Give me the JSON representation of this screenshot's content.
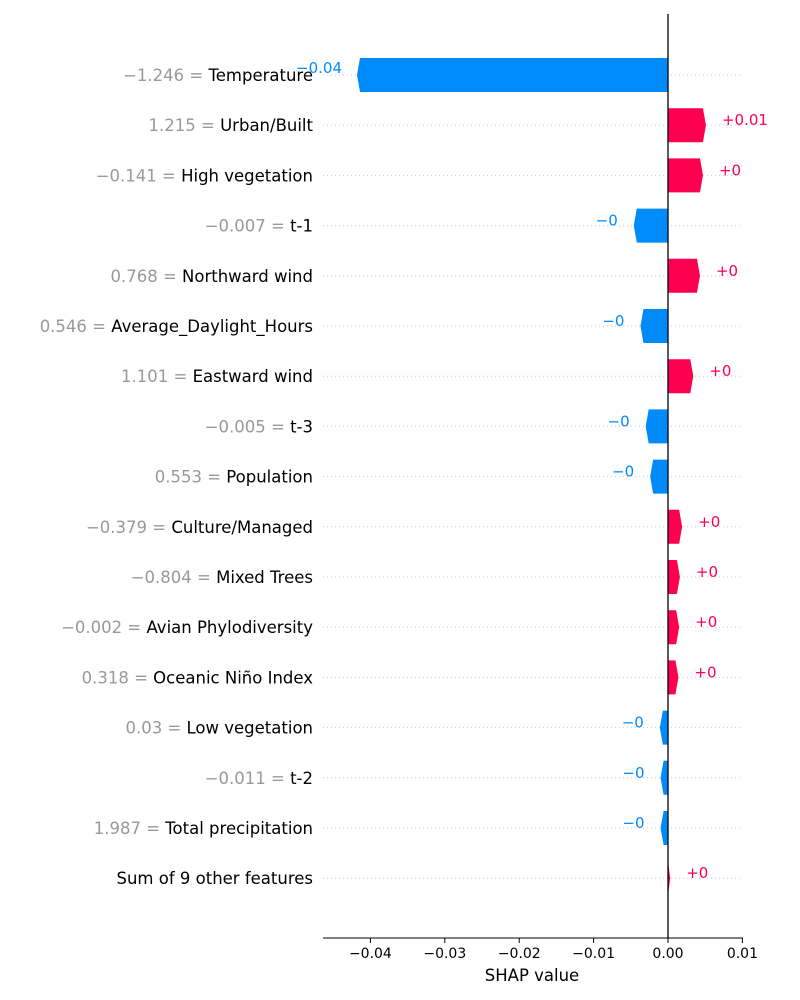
{
  "chart_data": {
    "type": "bar",
    "orientation": "horizontal",
    "title": "",
    "xlabel": "SHAP value",
    "ylabel": "",
    "xlim": [
      -0.047,
      0.01
    ],
    "xticks": [
      {
        "value": -0.04,
        "label": "−0.04"
      },
      {
        "value": -0.03,
        "label": "−0.03"
      },
      {
        "value": -0.02,
        "label": "−0.02"
      },
      {
        "value": -0.01,
        "label": "−0.01"
      },
      {
        "value": 0.0,
        "label": "0.00"
      },
      {
        "value": 0.01,
        "label": "0.01"
      }
    ],
    "grid": "dotted horizontal",
    "positive_color": "#ff0051",
    "negative_color": "#008bfb",
    "features": [
      {
        "value_text": "−1.246 = ",
        "name": "Temperature",
        "shap": -0.0418,
        "bar_label": "−0.04"
      },
      {
        "value_text": "1.215 = ",
        "name": "Urban/Built",
        "shap": 0.0051,
        "bar_label": "+0.01"
      },
      {
        "value_text": "−0.141 = ",
        "name": "High vegetation",
        "shap": 0.0047,
        "bar_label": "+0"
      },
      {
        "value_text": "−0.007 = ",
        "name": "t-1",
        "shap": -0.0046,
        "bar_label": "−0"
      },
      {
        "value_text": "0.768 = ",
        "name": "Northward wind",
        "shap": 0.0043,
        "bar_label": "+0"
      },
      {
        "value_text": "0.546 = ",
        "name": "Average_Daylight_Hours",
        "shap": -0.0037,
        "bar_label": "−0"
      },
      {
        "value_text": "1.101 = ",
        "name": "Eastward wind",
        "shap": 0.0034,
        "bar_label": "+0"
      },
      {
        "value_text": "−0.005 = ",
        "name": "t-3",
        "shap": -0.003,
        "bar_label": "−0"
      },
      {
        "value_text": "0.553 = ",
        "name": "Population",
        "shap": -0.0024,
        "bar_label": "−0"
      },
      {
        "value_text": "−0.379 = ",
        "name": "Culture/Managed",
        "shap": 0.0019,
        "bar_label": "+0"
      },
      {
        "value_text": "−0.804 = ",
        "name": "Mixed Trees",
        "shap": 0.0016,
        "bar_label": "+0"
      },
      {
        "value_text": "−0.002 = ",
        "name": "Avian Phylodiversity",
        "shap": 0.0015,
        "bar_label": "+0"
      },
      {
        "value_text": "0.318 = ",
        "name": "Oceanic Niño Index",
        "shap": 0.0014,
        "bar_label": "+0"
      },
      {
        "value_text": "0.03 = ",
        "name": "Low vegetation",
        "shap": -0.0011,
        "bar_label": "−0"
      },
      {
        "value_text": "−0.011 = ",
        "name": "t-2",
        "shap": -0.001,
        "bar_label": "−0"
      },
      {
        "value_text": "1.987 = ",
        "name": "Total precipitation",
        "shap": -0.001,
        "bar_label": "−0"
      },
      {
        "value_text": "",
        "name": "Sum of 9 other features",
        "shap": 0.0003,
        "bar_label": "+0"
      }
    ]
  }
}
